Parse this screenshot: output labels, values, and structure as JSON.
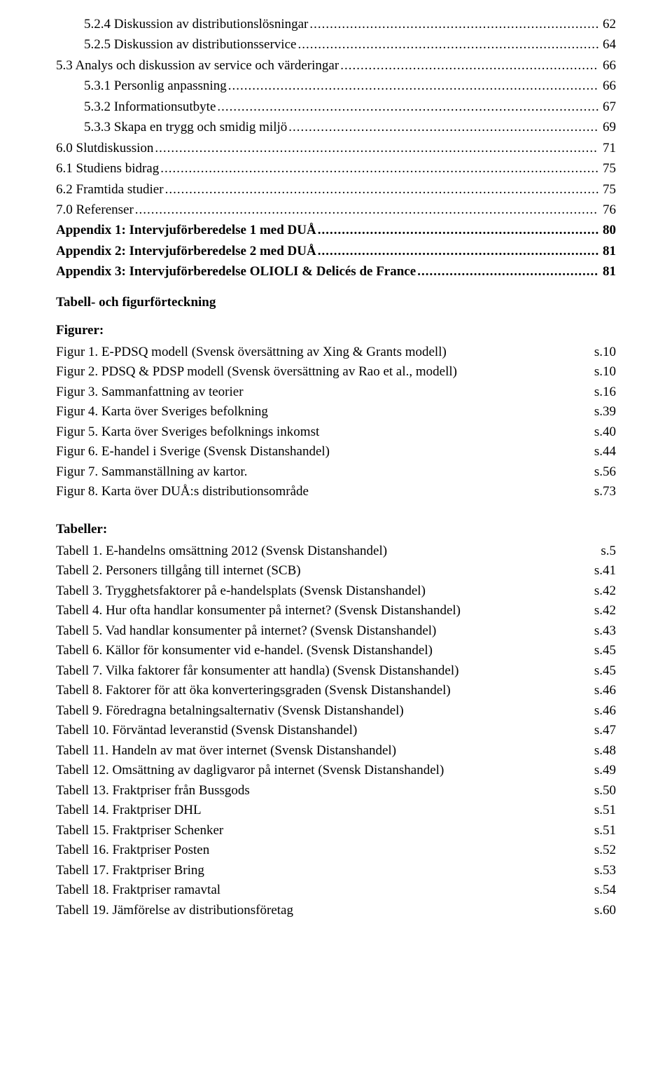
{
  "toc": [
    {
      "title": "5.2.4 Diskussion av distributionslösningar",
      "page": "62",
      "indent": 1,
      "bold": false
    },
    {
      "title": "5.2.5 Diskussion av distributionsservice",
      "page": "64",
      "indent": 1,
      "bold": false
    },
    {
      "title": "5.3 Analys och diskussion av service och värderingar",
      "page": "66",
      "indent": 0,
      "bold": false
    },
    {
      "title": "5.3.1 Personlig anpassning",
      "page": "66",
      "indent": 1,
      "bold": false
    },
    {
      "title": "5.3.2 Informationsutbyte",
      "page": "67",
      "indent": 1,
      "bold": false
    },
    {
      "title": "5.3.3 Skapa en trygg och smidig miljö",
      "page": "69",
      "indent": 1,
      "bold": false
    },
    {
      "title": "6.0 Slutdiskussion",
      "page": "71",
      "indent": 0,
      "bold": false
    },
    {
      "title": "6.1 Studiens bidrag",
      "page": "75",
      "indent": 0,
      "bold": false
    },
    {
      "title": "6.2 Framtida studier",
      "page": "75",
      "indent": 0,
      "bold": false
    },
    {
      "title": "7.0 Referenser",
      "page": "76",
      "indent": 0,
      "bold": false
    },
    {
      "title": "Appendix 1: Intervjuförberedelse 1 med DUÅ",
      "page": "80",
      "indent": 0,
      "bold": true
    },
    {
      "title": "Appendix 2: Intervjuförberedelse 2 med DUÅ",
      "page": "81",
      "indent": 0,
      "bold": true
    },
    {
      "title": "Appendix 3: Intervjuförberedelse OLIOLI & Delicés de France",
      "page": "81",
      "indent": 0,
      "bold": true
    }
  ],
  "tf_heading": "Tabell- och figurförteckning",
  "figures_heading": "Figurer:",
  "figures": [
    {
      "label": "Figur 1. E-PDSQ modell (Svensk översättning av Xing & Grants modell)",
      "page": "s.10"
    },
    {
      "label": "Figur 2. PDSQ & PDSP modell (Svensk översättning av Rao et al., modell)",
      "page": "s.10"
    },
    {
      "label": "Figur 3. Sammanfattning av teorier",
      "page": "s.16"
    },
    {
      "label": "Figur 4. Karta över Sveriges befolkning",
      "page": "s.39"
    },
    {
      "label": "Figur 5. Karta över Sveriges befolknings inkomst",
      "page": "s.40"
    },
    {
      "label": "Figur 6. E-handel i Sverige (Svensk Distanshandel)",
      "page": "s.44"
    },
    {
      "label": "Figur 7. Sammanställning av kartor.",
      "page": "s.56"
    },
    {
      "label": "Figur 8. Karta över DUÅ:s distributionsområde",
      "page": "s.73"
    }
  ],
  "tables_heading": "Tabeller:",
  "tables": [
    {
      "label": "Tabell 1. E-handelns omsättning 2012 (Svensk Distanshandel)",
      "page": "s.5"
    },
    {
      "label": "Tabell 2. Personers tillgång till internet (SCB)",
      "page": "s.41"
    },
    {
      "label": "Tabell 3. Trygghetsfaktorer på e-handelsplats (Svensk Distanshandel)",
      "page": "s.42"
    },
    {
      "label": "Tabell 4. Hur ofta handlar konsumenter på internet? (Svensk Distanshandel)",
      "page": "s.42"
    },
    {
      "label": "Tabell 5. Vad handlar konsumenter på internet? (Svensk Distanshandel)",
      "page": "s.43"
    },
    {
      "label": "Tabell 6. Källor för konsumenter vid e-handel. (Svensk Distanshandel)",
      "page": "s.45"
    },
    {
      "label": "Tabell 7. Vilka faktorer får konsumenter att handla) (Svensk Distanshandel)",
      "page": "s.45"
    },
    {
      "label": "Tabell 8. Faktorer för att öka konverteringsgraden (Svensk Distanshandel)",
      "page": "s.46"
    },
    {
      "label": "Tabell 9. Föredragna betalningsalternativ (Svensk Distanshandel)",
      "page": "s.46"
    },
    {
      "label": "Tabell 10. Förväntad leveranstid (Svensk Distanshandel)",
      "page": "s.47"
    },
    {
      "label": "Tabell 11. Handeln av mat över internet (Svensk Distanshandel)",
      "page": "s.48"
    },
    {
      "label": "Tabell 12. Omsättning av dagligvaror på internet (Svensk Distanshandel)",
      "page": "s.49"
    },
    {
      "label": "Tabell 13. Fraktpriser från Bussgods",
      "page": "s.50"
    },
    {
      "label": "Tabell 14. Fraktpriser DHL",
      "page": "s.51"
    },
    {
      "label": "Tabell 15. Fraktpriser Schenker",
      "page": "s.51"
    },
    {
      "label": "Tabell 16. Fraktpriser Posten",
      "page": "s.52"
    },
    {
      "label": "Tabell 17. Fraktpriser Bring",
      "page": "s.53"
    },
    {
      "label": "Tabell 18. Fraktpriser ramavtal",
      "page": "s.54"
    },
    {
      "label": "Tabell 19. Jämförelse av distributionsföretag",
      "page": "s.60"
    }
  ]
}
